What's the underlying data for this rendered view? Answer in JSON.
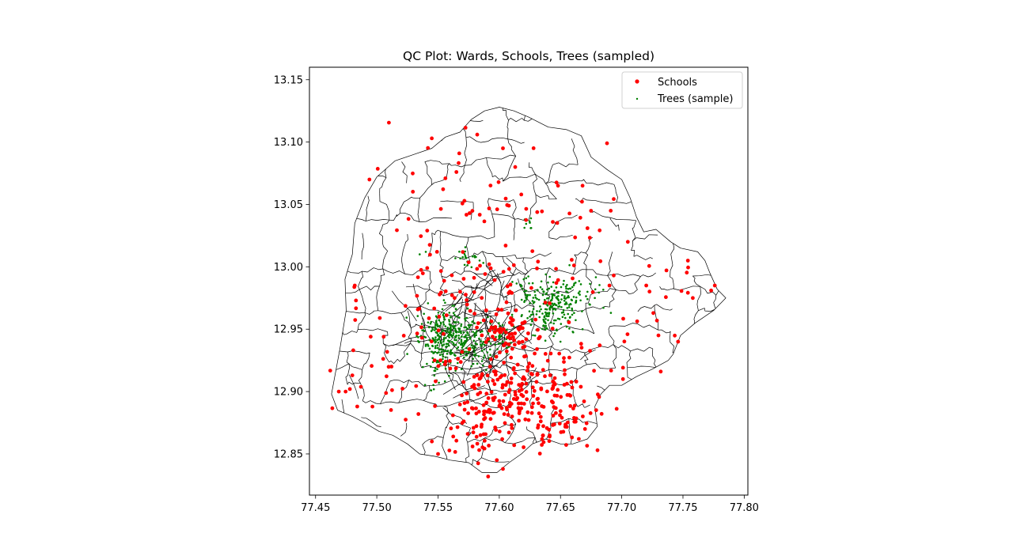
{
  "chart_data": {
    "type": "scatter",
    "title": "QC Plot: Wards, Schools, Trees (sampled)",
    "xlabel": "",
    "ylabel": "",
    "xlim": [
      77.445,
      77.803
    ],
    "ylim": [
      12.817,
      13.16
    ],
    "x_ticks": [
      77.45,
      77.5,
      77.55,
      77.6,
      77.65,
      77.7,
      77.75,
      77.8
    ],
    "x_tick_labels": [
      "77.45",
      "77.50",
      "77.55",
      "77.60",
      "77.65",
      "77.70",
      "77.75",
      "77.80"
    ],
    "y_ticks": [
      12.85,
      12.9,
      12.95,
      13.0,
      13.05,
      13.1,
      13.15
    ],
    "y_tick_labels": [
      "12.85",
      "12.90",
      "12.95",
      "13.00",
      "13.05",
      "13.10",
      "13.15"
    ],
    "grid": false,
    "legend": {
      "placement": "upper-right",
      "entries": [
        {
          "label": "Schools",
          "color": "#ff0000"
        },
        {
          "label": "Trees (sample)",
          "color": "#008000"
        }
      ]
    },
    "series": [
      {
        "name": "Schools",
        "color": "#ff0000",
        "marker_size": 2.4,
        "clusters": [
          {
            "center": [
              77.615,
              12.905
            ],
            "spread": [
              0.028,
              0.022
            ],
            "count": 230
          },
          {
            "center": [
              77.655,
              12.88
            ],
            "spread": [
              0.02,
              0.015
            ],
            "count": 45
          },
          {
            "center": [
              77.585,
              12.87
            ],
            "spread": [
              0.018,
              0.015
            ],
            "count": 40
          },
          {
            "center": [
              77.57,
              12.975
            ],
            "spread": [
              0.025,
              0.025
            ],
            "count": 50
          },
          {
            "center": [
              77.61,
              12.95
            ],
            "spread": [
              0.012,
              0.01
            ],
            "count": 35
          },
          {
            "center": [
              77.64,
              13.0
            ],
            "spread": [
              0.03,
              0.025
            ],
            "count": 30
          },
          {
            "center": [
              77.6,
              13.04
            ],
            "spread": [
              0.04,
              0.03
            ],
            "count": 25
          },
          {
            "center": [
              77.51,
              12.96
            ],
            "spread": [
              0.03,
              0.04
            ],
            "count": 20
          },
          {
            "center": [
              77.72,
              12.96
            ],
            "spread": [
              0.03,
              0.03
            ],
            "count": 18
          },
          {
            "center": [
              77.56,
              13.07
            ],
            "spread": [
              0.03,
              0.03
            ],
            "count": 12
          },
          {
            "center": [
              77.5,
              12.9
            ],
            "spread": [
              0.025,
              0.02
            ],
            "count": 10
          }
        ],
        "points": [
          [
            77.494,
            13.07
          ],
          [
            77.668,
            13.065
          ],
          [
            77.688,
            13.099
          ],
          [
            77.603,
            13.095
          ],
          [
            77.582,
            13.106
          ],
          [
            77.613,
            13.08
          ],
          [
            77.705,
            13.02
          ],
          [
            77.754,
            13.005
          ],
          [
            77.773,
            12.981
          ],
          [
            77.746,
            12.94
          ],
          [
            77.701,
            12.91
          ],
          [
            77.478,
            12.902
          ],
          [
            77.484,
            12.888
          ],
          [
            77.469,
            12.9
          ],
          [
            77.55,
            12.85
          ],
          [
            77.598,
            12.845
          ],
          [
            77.603,
            12.838
          ],
          [
            77.545,
            12.86
          ],
          [
            77.758,
            12.975
          ],
          [
            77.69,
            12.985
          ],
          [
            77.672,
            13.031
          ],
          [
            77.691,
            13.045
          ],
          [
            77.648,
            13.065
          ],
          [
            77.565,
            13.076
          ],
          [
            77.556,
            13.071
          ],
          [
            77.483,
            12.973
          ],
          [
            77.482,
            12.985
          ],
          [
            77.48,
            12.913
          ],
          [
            77.495,
            12.944
          ],
          [
            77.512,
            12.92
          ],
          [
            77.534,
            12.882
          ],
          [
            77.618,
            13.058
          ],
          [
            77.682,
            12.937
          ],
          [
            77.776,
            12.985
          ],
          [
            77.73,
            12.945
          ],
          [
            77.72,
            12.985
          ],
          [
            77.665,
            12.862
          ],
          [
            77.67,
            12.87
          ]
        ]
      },
      {
        "name": "Trees (sample)",
        "color": "#008000",
        "marker_size": 1.3,
        "clusters": [
          {
            "center": [
              77.558,
              12.945
            ],
            "spread": [
              0.012,
              0.012
            ],
            "count": 260
          },
          {
            "center": [
              77.588,
              12.94
            ],
            "spread": [
              0.012,
              0.008
            ],
            "count": 90
          },
          {
            "center": [
              77.64,
              12.968
            ],
            "spread": [
              0.012,
              0.01
            ],
            "count": 170
          },
          {
            "center": [
              77.66,
              12.978
            ],
            "spread": [
              0.012,
              0.008
            ],
            "count": 60
          },
          {
            "center": [
              77.55,
              12.925
            ],
            "spread": [
              0.007,
              0.01
            ],
            "count": 40
          },
          {
            "center": [
              77.575,
              13.008
            ],
            "spread": [
              0.005,
              0.003
            ],
            "count": 20
          },
          {
            "center": [
              77.625,
              13.033
            ],
            "spread": [
              0.003,
              0.003
            ],
            "count": 8
          },
          {
            "center": [
              77.623,
              12.985
            ],
            "spread": [
              0.004,
              0.006
            ],
            "count": 14
          }
        ],
        "points": [
          [
            77.54,
            13.012
          ],
          [
            77.535,
            13.01
          ],
          [
            77.543,
            13.01
          ],
          [
            77.62,
            12.99
          ],
          [
            77.655,
            12.952
          ],
          [
            77.66,
            12.948
          ],
          [
            77.668,
            12.95
          ],
          [
            77.65,
            12.94
          ],
          [
            77.672,
            12.98
          ],
          [
            77.678,
            12.975
          ],
          [
            77.595,
            12.952
          ],
          [
            77.6,
            12.945
          ]
        ]
      }
    ]
  }
}
